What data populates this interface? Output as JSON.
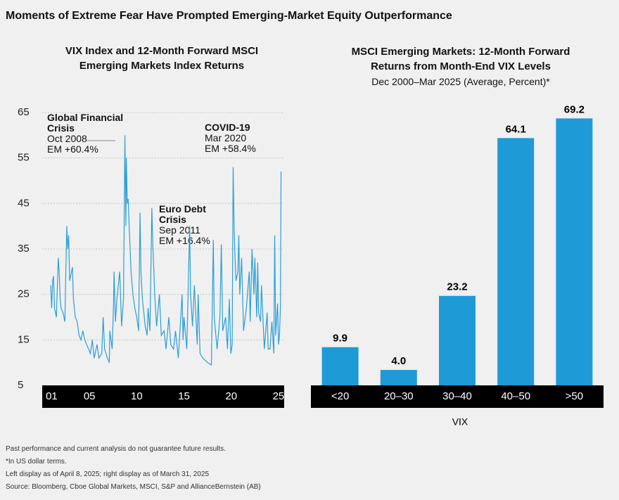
{
  "title": "Moments of Extreme Fear Have Prompted Emerging-Market Equity Outperformance",
  "chart_data": [
    {
      "type": "line",
      "title": "VIX Index and 12-Month Forward MSCI Emerging Markets Index Returns",
      "color": "#2a9fd8",
      "x": [
        2000.9,
        2001.0,
        2001.1,
        2001.2,
        2001.3,
        2001.5,
        2001.7,
        2001.8,
        2001.9,
        2002.0,
        2002.2,
        2002.4,
        2002.5,
        2002.6,
        2002.7,
        2002.8,
        2002.9,
        2003.0,
        2003.2,
        2003.3,
        2003.5,
        2003.7,
        2003.9,
        2004.1,
        2004.3,
        2004.5,
        2004.7,
        2004.9,
        2005.1,
        2005.3,
        2005.5,
        2005.8,
        2006.0,
        2006.3,
        2006.45,
        2006.6,
        2006.9,
        2007.1,
        2007.15,
        2007.4,
        2007.55,
        2007.6,
        2007.75,
        2007.9,
        2008.0,
        2008.2,
        2008.4,
        2008.6,
        2008.75,
        2008.85,
        2008.9,
        2009.0,
        2009.1,
        2009.2,
        2009.4,
        2009.6,
        2009.8,
        2010.0,
        2010.2,
        2010.35,
        2010.45,
        2010.6,
        2010.9,
        2011.1,
        2011.2,
        2011.4,
        2011.6,
        2011.7,
        2011.8,
        2011.9,
        2012.1,
        2012.4,
        2012.6,
        2012.9,
        2013.1,
        2013.4,
        2013.6,
        2013.9,
        2014.1,
        2014.4,
        2014.8,
        2014.9,
        2015.0,
        2015.3,
        2015.6,
        2015.7,
        2015.9,
        2016.1,
        2016.4,
        2016.5,
        2016.7,
        2017.0,
        2017.5,
        2017.9,
        2018.1,
        2018.2,
        2018.5,
        2018.8,
        2018.95,
        2019.1,
        2019.4,
        2019.6,
        2019.8,
        2019.95,
        2020.1,
        2020.2,
        2020.3,
        2020.4,
        2020.5,
        2020.7,
        2020.8,
        2020.9,
        2021.1,
        2021.3,
        2021.6,
        2021.9,
        2022.0,
        2022.2,
        2022.4,
        2022.5,
        2022.7,
        2022.8,
        2022.9,
        2023.1,
        2023.2,
        2023.5,
        2023.8,
        2023.9,
        2024.1,
        2024.3,
        2024.5,
        2024.6,
        2024.7,
        2024.9,
        2025.0,
        2025.1,
        2025.2,
        2025.27
      ],
      "values": [
        27,
        22,
        28,
        29,
        22,
        20,
        33,
        30,
        24,
        22,
        21,
        19,
        30,
        40,
        35,
        38,
        28,
        29,
        31,
        24,
        20,
        19,
        16,
        15,
        17,
        15,
        14,
        13,
        12,
        15,
        11,
        14,
        11,
        12,
        20,
        13,
        11,
        10,
        17,
        13,
        23,
        30,
        19,
        24,
        26,
        30,
        18,
        24,
        60,
        40,
        55,
        45,
        46,
        40,
        30,
        25,
        22,
        20,
        17,
        43,
        30,
        24,
        18,
        16,
        22,
        17,
        44,
        36,
        31,
        25,
        18,
        25,
        16,
        17,
        13,
        20,
        14,
        13,
        17,
        11,
        25,
        15,
        20,
        13,
        40,
        25,
        18,
        27,
        14,
        25,
        12,
        11,
        10,
        9.5,
        37,
        20,
        13,
        20,
        36,
        17,
        20,
        13,
        24,
        12,
        14,
        53,
        40,
        33,
        28,
        30,
        38,
        25,
        33,
        17,
        22,
        30,
        19,
        35,
        25,
        33,
        20,
        32,
        21,
        19,
        27,
        13,
        21,
        13,
        13,
        19,
        12,
        38,
        16,
        23,
        14,
        16,
        22,
        52
      ],
      "xlim": [
        2000,
        2025.6
      ],
      "xticks": [
        {
          "value": 2001,
          "label": "01"
        },
        {
          "value": 2005,
          "label": "05"
        },
        {
          "value": 2010,
          "label": "10"
        },
        {
          "value": 2015,
          "label": "15"
        },
        {
          "value": 2020,
          "label": "20"
        },
        {
          "value": 2025,
          "label": "25"
        }
      ],
      "ylim": [
        5,
        65
      ],
      "yticks": [
        5,
        15,
        25,
        35,
        45,
        55,
        65
      ],
      "grid": true,
      "annotations": [
        {
          "title": "Global Financial Crisis",
          "date": "Oct 2008",
          "note": "EM +60.4%"
        },
        {
          "title": "COVID-19",
          "date": "Mar 2020",
          "note": "EM +58.4%"
        },
        {
          "title": "Euro Debt Crisis",
          "date": "Sep 2011",
          "note": "EM +16.4%"
        }
      ]
    },
    {
      "type": "bar",
      "title": "MSCI Emerging Markets: 12-Month Forward Returns from Month-End VIX Levels",
      "subtitle": "Dec 2000–Mar 2025 (Average, Percent)*",
      "x_label": "VIX",
      "color": "#1e9ad6",
      "categories": [
        "<20",
        "20–30",
        "30–40",
        "40–50",
        ">50"
      ],
      "values": [
        9.9,
        4.0,
        23.2,
        64.1,
        69.2
      ],
      "value_labels": [
        "9.9",
        "4.0",
        "23.2",
        "64.1",
        "69.2"
      ],
      "ylim": [
        0,
        70
      ]
    }
  ],
  "footnotes": [
    "Past performance and current analysis do not guarantee future results.",
    "*In US dollar terms.",
    "Left display as of April 8, 2025; right display as of March 31, 2025",
    "Source: Bloomberg, Cboe Global Markets, MSCI, S&P and AllianceBernstein (AB)"
  ]
}
